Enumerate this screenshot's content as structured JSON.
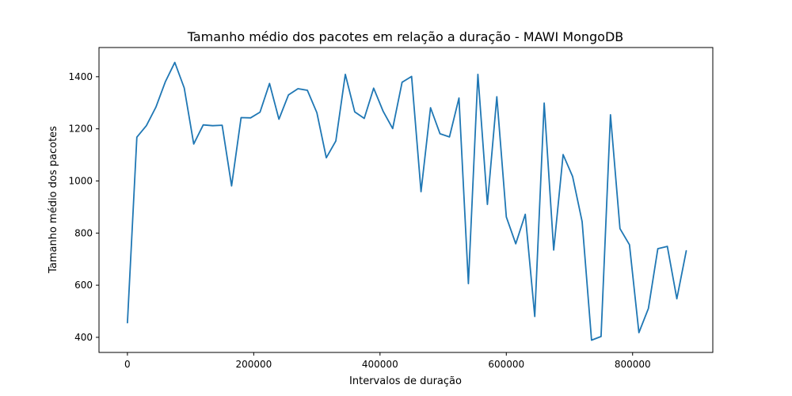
{
  "chart_data": {
    "type": "line",
    "title": "Tamanho médio dos pacotes em relação a duração - MAWI MongoDB",
    "xlabel": "Intervalos de duração",
    "ylabel": "Tamanho médio dos pacotes",
    "xlim": [
      -45000,
      927000
    ],
    "ylim": [
      342,
      1512
    ],
    "x_ticks": [
      0,
      200000,
      400000,
      600000,
      800000
    ],
    "x_tick_labels": [
      "0",
      "200000",
      "400000",
      "600000",
      "800000"
    ],
    "y_ticks": [
      400,
      600,
      800,
      1000,
      1200,
      1400
    ],
    "y_tick_labels": [
      "400",
      "600",
      "800",
      "1000",
      "1200",
      "1400"
    ],
    "grid": false,
    "line_color": "#1f77b4",
    "series": [
      {
        "x": [
          0,
          15000,
          30000,
          45000,
          60000,
          75000,
          90000,
          105000,
          120000,
          135000,
          150000,
          165000,
          180000,
          195000,
          210000,
          225000,
          240000,
          255000,
          270000,
          285000,
          300000,
          315000,
          330000,
          345000,
          360000,
          375000,
          390000,
          405000,
          420000,
          435000,
          450000,
          465000,
          480000,
          495000,
          510000,
          525000,
          540000,
          555000,
          570000,
          585000,
          600000,
          615000,
          630000,
          645000,
          660000,
          675000,
          690000,
          705000,
          720000,
          735000,
          750000,
          765000,
          780000,
          795000,
          810000,
          825000,
          840000,
          855000,
          870000,
          885000
        ],
        "values": [
          456,
          1168,
          1212,
          1283,
          1380,
          1455,
          1357,
          1142,
          1215,
          1212,
          1214,
          981,
          1243,
          1242,
          1264,
          1374,
          1237,
          1330,
          1354,
          1348,
          1262,
          1089,
          1153,
          1409,
          1265,
          1240,
          1356,
          1267,
          1201,
          1379,
          1401,
          959,
          1281,
          1181,
          1169,
          1318,
          606,
          1409,
          910,
          1323,
          862,
          759,
          872,
          480,
          1299,
          735,
          1101,
          1017,
          844,
          389,
          403,
          1254,
          817,
          755,
          418,
          511,
          740,
          749,
          548,
          732
        ]
      }
    ]
  }
}
